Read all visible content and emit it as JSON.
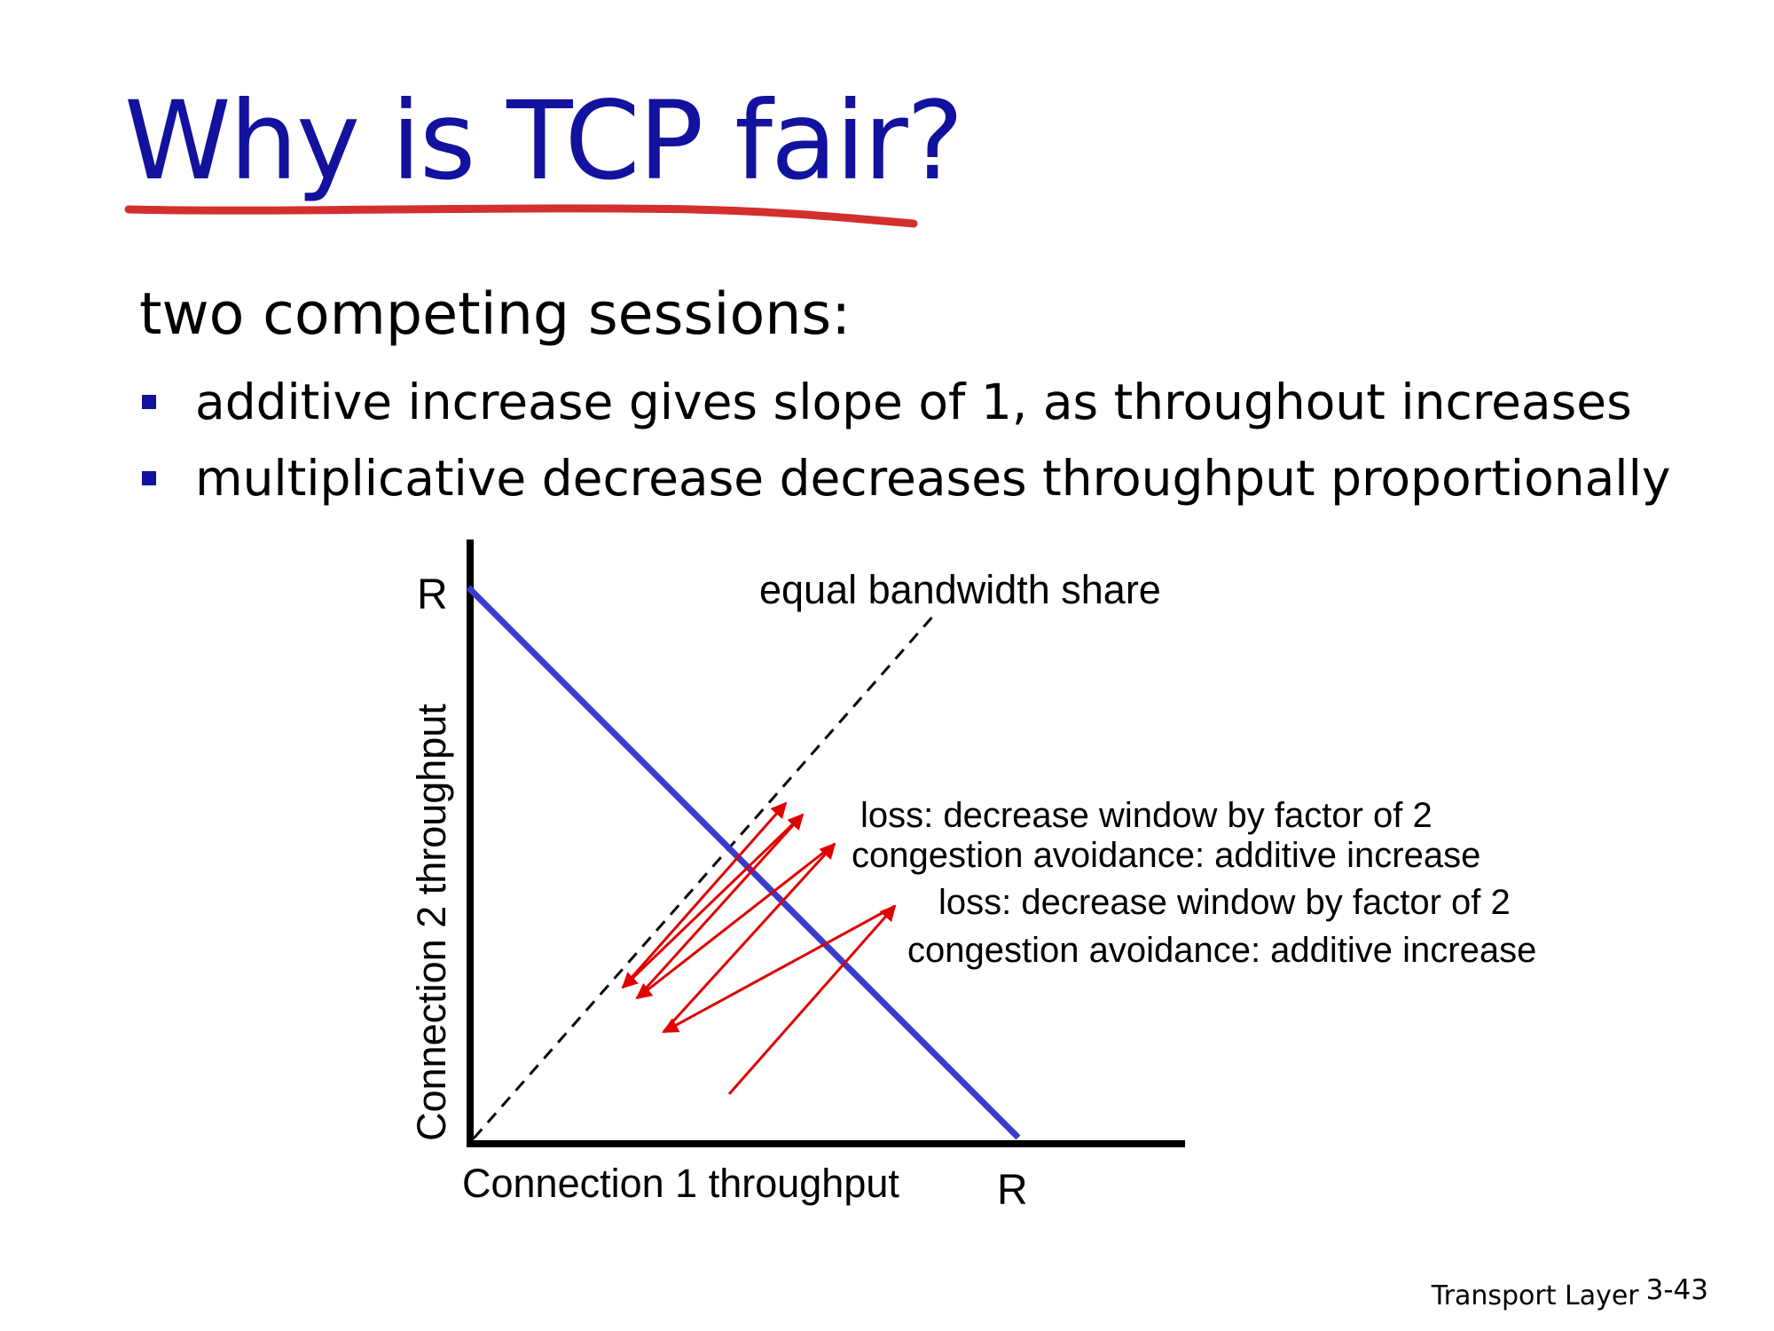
{
  "slide": {
    "title": "Why is TCP fair?",
    "subtitle": "two competing sessions:",
    "bullets": [
      "additive increase gives slope of 1, as throughout increases",
      "multiplicative decrease decreases throughput proportionally"
    ],
    "footer_label": "Transport Layer",
    "page_number": "3-43"
  },
  "diagram": {
    "x_axis_label": "Connection 1 throughput",
    "y_axis_label": "Connection 2 throughput",
    "x_max_label": "R",
    "y_max_label": "R",
    "equal_share_label": "equal bandwidth share",
    "annotations": [
      "loss: decrease window by factor of 2",
      "congestion avoidance: additive increase",
      "loss: decrease window by factor of 2",
      "congestion avoidance: additive increase"
    ]
  },
  "colors": {
    "title": "#12129e",
    "title_underline": "#d32f2f",
    "bullet_marker": "#12129e",
    "capacity_line": "#3b3bcc",
    "trajectory_arrows": "#e00000",
    "axes": "#000000"
  }
}
